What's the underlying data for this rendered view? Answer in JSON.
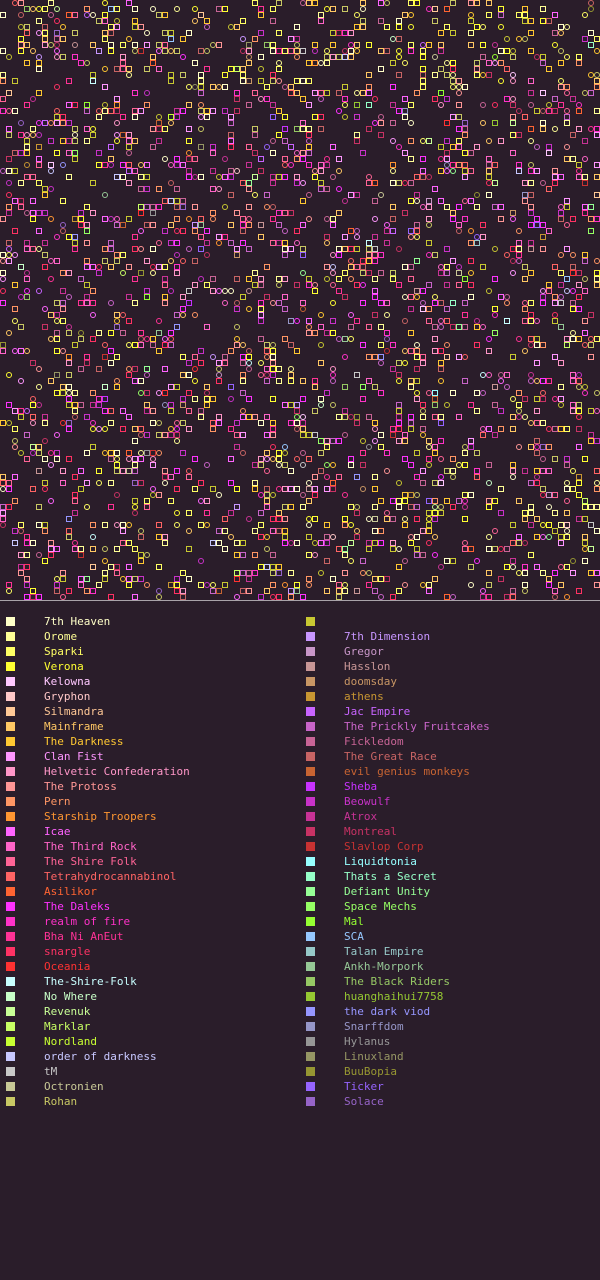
{
  "map": {
    "background": "#2a1d2a",
    "cell_size": 6,
    "cols": 100,
    "rows": 100,
    "empty_fraction": 0.76
  },
  "legend": {
    "columns": [
      [
        {
          "name": "7th Heaven",
          "color": "#ffffc8"
        },
        {
          "name": "Orome",
          "color": "#ffff96"
        },
        {
          "name": "Sparki",
          "color": "#ffff64"
        },
        {
          "name": "Verona",
          "color": "#ffff32"
        },
        {
          "name": "Kelowna",
          "color": "#ffc8ff"
        },
        {
          "name": "Gryphon",
          "color": "#ffc8c8"
        },
        {
          "name": "Silmandra",
          "color": "#ffc896"
        },
        {
          "name": "Mainframe",
          "color": "#ffc864"
        },
        {
          "name": "The Darkness",
          "color": "#ffc832"
        },
        {
          "name": "Clan Fist",
          "color": "#ff96ff"
        },
        {
          "name": "Helvetic Confederation",
          "color": "#ff96c8"
        },
        {
          "name": "The Protoss",
          "color": "#ff9696"
        },
        {
          "name": "Pern",
          "color": "#ff9664"
        },
        {
          "name": "Starship Troopers",
          "color": "#ff9632"
        },
        {
          "name": "Icae",
          "color": "#ff64ff"
        },
        {
          "name": "The Third Rock",
          "color": "#ff64c8"
        },
        {
          "name": "The Shire Folk",
          "color": "#ff6496"
        },
        {
          "name": "Tetrahydrocannabinol",
          "color": "#ff6464"
        },
        {
          "name": "Asilikor",
          "color": "#ff6432"
        },
        {
          "name": "The Daleks",
          "color": "#ff32ff"
        },
        {
          "name": "realm of fire",
          "color": "#ff32c8"
        },
        {
          "name": "Bha Ni AnEut",
          "color": "#ff3296"
        },
        {
          "name": "snargle",
          "color": "#ff3264"
        },
        {
          "name": "Oceania",
          "color": "#ff3232"
        },
        {
          "name": "The-Shire-Folk",
          "color": "#c8ffff"
        },
        {
          "name": "No Where",
          "color": "#c8ffc8"
        },
        {
          "name": "Revenuk",
          "color": "#c8ff96"
        },
        {
          "name": "Marklar",
          "color": "#c8ff64"
        },
        {
          "name": "Nordland",
          "color": "#c8ff32"
        },
        {
          "name": "order of darkness",
          "color": "#c8c8ff"
        },
        {
          "name": "tM",
          "color": "#c8c8c8"
        },
        {
          "name": "Octronien",
          "color": "#c8c896"
        },
        {
          "name": "Rohan",
          "color": "#c8c864"
        }
      ],
      [
        {
          "name": "",
          "color": "#c8c832"
        },
        {
          "name": "7th Dimension",
          "color": "#c896ff"
        },
        {
          "name": "Gregor",
          "color": "#c896c8"
        },
        {
          "name": "Hasslon",
          "color": "#c89696"
        },
        {
          "name": "doomsday",
          "color": "#c89664"
        },
        {
          "name": "athens",
          "color": "#c89632"
        },
        {
          "name": "Jac Empire",
          "color": "#c864ff"
        },
        {
          "name": "The Prickly Fruitcakes",
          "color": "#c864c8"
        },
        {
          "name": "Fickledom",
          "color": "#c86496"
        },
        {
          "name": "The Great Race",
          "color": "#c86464"
        },
        {
          "name": "evil genius monkeys",
          "color": "#c86432"
        },
        {
          "name": "Sheba",
          "color": "#c832ff"
        },
        {
          "name": "Beowulf",
          "color": "#c832c8"
        },
        {
          "name": "Atrox",
          "color": "#c83296"
        },
        {
          "name": "Montreal",
          "color": "#c83264"
        },
        {
          "name": "Slavlop Corp",
          "color": "#c83232"
        },
        {
          "name": "Liquidtonia",
          "color": "#96ffff"
        },
        {
          "name": "Thats a Secret",
          "color": "#96ffc8"
        },
        {
          "name": "Defiant Unity",
          "color": "#96ff96"
        },
        {
          "name": "Space Mechs",
          "color": "#96ff64"
        },
        {
          "name": "Mal",
          "color": "#96ff32"
        },
        {
          "name": "SCA",
          "color": "#96c8ff"
        },
        {
          "name": "Talan Empire",
          "color": "#96c8c8"
        },
        {
          "name": "Ankh-Morpork",
          "color": "#96c896"
        },
        {
          "name": "The Black Riders",
          "color": "#96c864"
        },
        {
          "name": "huanghaihui7758",
          "color": "#96c832"
        },
        {
          "name": "the dark viod",
          "color": "#9696ff"
        },
        {
          "name": "Snarffdom",
          "color": "#9696c8"
        },
        {
          "name": "Hylanus",
          "color": "#969696"
        },
        {
          "name": "Linuxland",
          "color": "#969664"
        },
        {
          "name": "BuuBopia",
          "color": "#969632"
        },
        {
          "name": "Ticker",
          "color": "#9664ff"
        },
        {
          "name": "Solace",
          "color": "#9664c8"
        }
      ]
    ]
  }
}
